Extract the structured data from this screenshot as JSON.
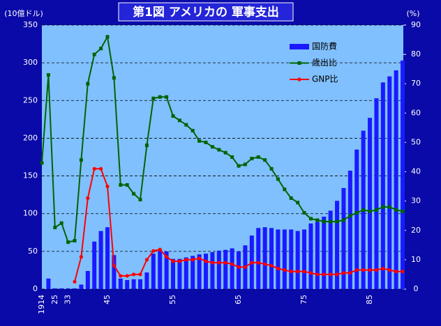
{
  "chart_data": {
    "type": "combo",
    "title": "第1図 アメリカの 軍事支出",
    "y_label": "(10億ドル)",
    "y2_label": "(%)",
    "categories": [
      "1914",
      null,
      "25",
      null,
      "33",
      null,
      null,
      null,
      null,
      null,
      "45",
      null,
      null,
      null,
      null,
      null,
      null,
      null,
      null,
      null,
      "55",
      null,
      null,
      null,
      null,
      null,
      null,
      null,
      null,
      null,
      "65",
      null,
      null,
      null,
      null,
      null,
      null,
      null,
      null,
      null,
      "75",
      null,
      null,
      null,
      null,
      null,
      null,
      null,
      null,
      null,
      "85",
      null,
      null,
      null,
      null,
      null
    ],
    "ylim": [
      0,
      350
    ],
    "yticks": [
      0,
      50,
      100,
      150,
      200,
      250,
      300,
      350
    ],
    "y2lim": [
      0,
      90
    ],
    "y2ticks": [
      0,
      10,
      20,
      30,
      40,
      50,
      60,
      70,
      80,
      90
    ],
    "grid": true,
    "legend": "upper right",
    "series": [
      {
        "name": "国防費",
        "kind": "bar",
        "color": "#1a1aff",
        "values": [
          0,
          14,
          1,
          1,
          1,
          1,
          6,
          24,
          63,
          77,
          82,
          45,
          14,
          12,
          13,
          13,
          22,
          47,
          52,
          50,
          40,
          40,
          42,
          44,
          46,
          47,
          49,
          51,
          52,
          54,
          50,
          58,
          71,
          81,
          82,
          81,
          79,
          79,
          79,
          77,
          79,
          87,
          89,
          96,
          104,
          117,
          134,
          157,
          185,
          210,
          227,
          253,
          274,
          282,
          290,
          303
        ]
      },
      {
        "name": "歳出比",
        "kind": "line",
        "axis": "y2",
        "marker": "square",
        "color": "#006400",
        "values": [
          43,
          73,
          21,
          22.5,
          16,
          16.5,
          44,
          70,
          80,
          82,
          86,
          72,
          35.5,
          35.5,
          32.5,
          30.5,
          49,
          65,
          65.5,
          65.5,
          59,
          57.5,
          56,
          54,
          50.5,
          50,
          48.5,
          47.5,
          46.5,
          45,
          42,
          42.5,
          44.5,
          45,
          44,
          41,
          37.5,
          34,
          31,
          29.5,
          26,
          24,
          23.5,
          23,
          23,
          23,
          23.5,
          25,
          26,
          27,
          26.5,
          27,
          28,
          28,
          27,
          26.5
        ]
      },
      {
        "name": "GNP比",
        "kind": "line",
        "axis": "y2",
        "marker": "circle",
        "color": "#ff0000",
        "values": [
          null,
          null,
          null,
          null,
          null,
          2.5,
          11,
          31,
          41,
          41,
          35,
          8,
          4.5,
          4.5,
          5,
          5,
          10,
          13,
          13.5,
          11,
          9.5,
          9.5,
          10,
          10,
          10.5,
          9.5,
          9,
          9,
          9,
          8.5,
          7.5,
          7.5,
          9,
          9,
          8.5,
          8,
          7,
          6.5,
          6,
          6,
          6,
          5.5,
          5,
          5,
          5,
          5,
          5.5,
          5.5,
          6.5,
          6.5,
          6.5,
          6.5,
          7,
          6.5,
          6,
          6
        ]
      }
    ]
  }
}
